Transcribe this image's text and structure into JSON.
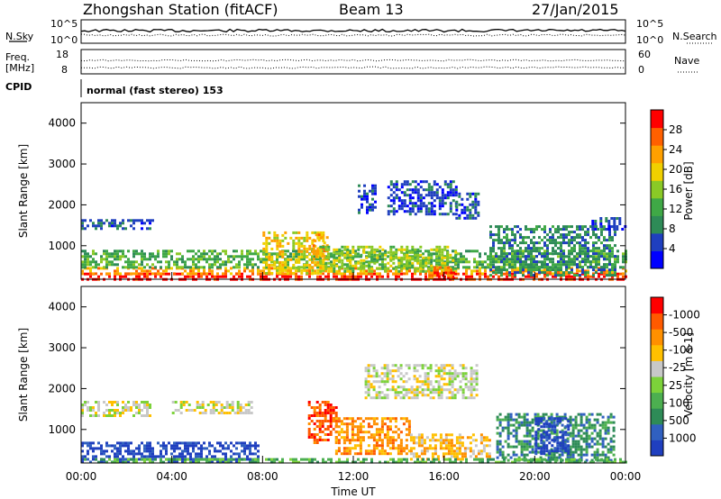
{
  "header": {
    "station": "Zhongshan Station (fitACF)",
    "beam": "Beam 13",
    "date": "27/Jan/2015"
  },
  "top_panels": {
    "nsky_label": "N.Sky",
    "nsky_ticks": [
      "10^5",
      "10^0"
    ],
    "nsearch_label": "N.Search",
    "nsearch_ticks": [
      "10^5",
      "10^0"
    ],
    "freq_label_1": "Freq.",
    "freq_label_2": "[MHz]",
    "freq_ticks": [
      "18",
      "8"
    ],
    "nave_label": "Nave",
    "nave_ticks": [
      "60",
      "0"
    ],
    "cpid_label": "CPID",
    "cpid_text": "normal (fast stereo) 153"
  },
  "chart_data": [
    {
      "type": "heatmap",
      "name": "power",
      "ylabel": "Slant Range [km]",
      "yticks": [
        "1000",
        "2000",
        "3000",
        "4000"
      ],
      "ylim": [
        180,
        4500
      ],
      "xlim": [
        0,
        24
      ],
      "colorbar_label": "Power [dB]",
      "colorbar_ticks": [
        "4",
        "8",
        "12",
        "16",
        "20",
        "24",
        "28"
      ],
      "colorbar_colors": [
        "#0000ff",
        "#1f3fbf",
        "#2e8b57",
        "#3fa846",
        "#8ac926",
        "#f0d000",
        "#ffa000",
        "#ff6000",
        "#ff0000"
      ],
      "regions": [
        {
          "x0": 0.0,
          "x1": 24.0,
          "y0": 200,
          "y1": 340,
          "level": 8
        },
        {
          "x0": 0.0,
          "x1": 24.0,
          "y0": 340,
          "y1": 480,
          "level": 6
        },
        {
          "x0": 0.0,
          "x1": 24.0,
          "y0": 480,
          "y1": 900,
          "level": 3
        },
        {
          "x0": 0.0,
          "x1": 3.2,
          "y0": 1450,
          "y1": 1650,
          "level": 1
        },
        {
          "x0": 8.0,
          "x1": 10.7,
          "y0": 300,
          "y1": 1350,
          "level": 5
        },
        {
          "x0": 10.2,
          "x1": 10.9,
          "y0": 650,
          "y1": 1300,
          "level": 6
        },
        {
          "x0": 10.5,
          "x1": 16.5,
          "y0": 380,
          "y1": 1000,
          "level": 4
        },
        {
          "x0": 13.5,
          "x1": 16.5,
          "y0": 1800,
          "y1": 2600,
          "level": 1
        },
        {
          "x0": 12.2,
          "x1": 13.0,
          "y0": 1800,
          "y1": 2500,
          "level": 1
        },
        {
          "x0": 16.5,
          "x1": 17.5,
          "y0": 1700,
          "y1": 2300,
          "level": 1
        },
        {
          "x0": 18.0,
          "x1": 23.5,
          "y0": 300,
          "y1": 1500,
          "level": 2
        },
        {
          "x0": 22.5,
          "x1": 24.0,
          "y0": 1400,
          "y1": 1700,
          "level": 1
        },
        {
          "x0": 15.3,
          "x1": 16.5,
          "y0": 200,
          "y1": 500,
          "level": 7
        }
      ]
    },
    {
      "type": "heatmap",
      "name": "velocity",
      "ylabel": "Slant Range [km]",
      "yticks": [
        "1000",
        "2000",
        "3000",
        "4000"
      ],
      "ylim": [
        180,
        4500
      ],
      "xlim": [
        0,
        24
      ],
      "xticks": [
        "00:00",
        "04:00",
        "08:00",
        "12:00",
        "16:00",
        "20:00",
        "00:00"
      ],
      "xlabel": "Time UT",
      "colorbar_label": "Velocity [m s-1]",
      "colorbar_ticks": [
        "1000",
        "500",
        "100",
        "25",
        "-25",
        "-100",
        "-500",
        "-1000"
      ],
      "colorbar_colors": [
        "#1f3fbf",
        "#3060c0",
        "#2e8b57",
        "#4caf50",
        "#7cd23a",
        "#c8c8c8",
        "#ffc000",
        "#ff9000",
        "#ff5a00",
        "#ff0000"
      ],
      "regions": [
        {
          "x0": 0.0,
          "x1": 7.8,
          "y0": 200,
          "y1": 700,
          "level": 0
        },
        {
          "x0": 0.0,
          "x1": 3.0,
          "y0": 1350,
          "y1": 1700,
          "level": 5
        },
        {
          "x0": 4.0,
          "x1": 7.5,
          "y0": 1400,
          "y1": 1700,
          "level": 5
        },
        {
          "x0": 10.0,
          "x1": 11.2,
          "y0": 650,
          "y1": 1700,
          "level": 8
        },
        {
          "x0": 11.2,
          "x1": 14.5,
          "y0": 400,
          "y1": 1300,
          "level": 7
        },
        {
          "x0": 14.5,
          "x1": 18.0,
          "y0": 250,
          "y1": 900,
          "level": 6
        },
        {
          "x0": 12.5,
          "x1": 17.5,
          "y0": 1800,
          "y1": 2600,
          "level": 5
        },
        {
          "x0": 18.3,
          "x1": 23.5,
          "y0": 250,
          "y1": 1400,
          "level": 2
        },
        {
          "x0": 20.0,
          "x1": 21.5,
          "y0": 400,
          "y1": 1300,
          "level": 0
        },
        {
          "x0": 0.0,
          "x1": 24.0,
          "y0": 180,
          "y1": 300,
          "level": 3
        }
      ]
    }
  ]
}
